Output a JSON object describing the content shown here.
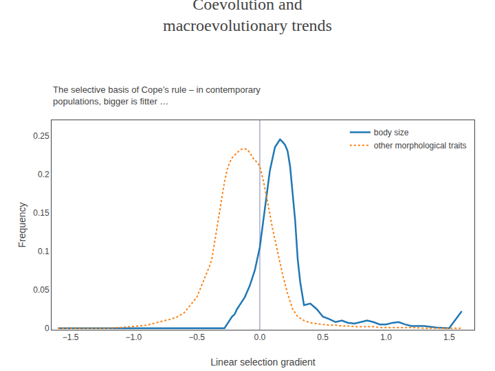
{
  "chart_data": {
    "type": "line",
    "title": "Coevolution and\nmacroevolutionary trends",
    "subtitle": "The selective basis of Cope’s rule – in contemporary\npopulations, bigger is fitter …",
    "x_label": "Linear selection gradient",
    "y_label": "Frequency",
    "xlim": [
      -1.65,
      1.7
    ],
    "ylim": [
      -0.002,
      0.27
    ],
    "xticks": [
      {
        "value": -1.5,
        "label": "−1.5"
      },
      {
        "value": -1.0,
        "label": "−1.0"
      },
      {
        "value": -0.5,
        "label": "−0.5"
      },
      {
        "value": 0.0,
        "label": "0.0"
      },
      {
        "value": 0.5,
        "label": "0.5"
      },
      {
        "value": 1.0,
        "label": "1.0"
      },
      {
        "value": 1.5,
        "label": "1.5"
      }
    ],
    "yticks": [
      0,
      0.05,
      0.1,
      0.15,
      0.2,
      0.25
    ],
    "grid": false,
    "legend": "upper right",
    "vline": {
      "x": 0.0,
      "color": "#aaaacc"
    },
    "series": [
      {
        "name": "body size",
        "line_style": "solid",
        "x": [
          -1.6,
          -1.2,
          -0.8,
          -0.6,
          -0.5,
          -0.45,
          -0.42,
          -0.38,
          -0.36,
          -0.32,
          -0.3,
          -0.28,
          -0.26,
          -0.24,
          -0.22,
          -0.2,
          -0.18,
          -0.16,
          -0.12,
          -0.08,
          -0.04,
          0.0,
          0.04,
          0.08,
          0.12,
          0.16,
          0.18,
          0.2,
          0.22,
          0.24,
          0.26,
          0.28,
          0.3,
          0.32,
          0.35,
          0.4,
          0.45,
          0.5,
          0.55,
          0.6,
          0.65,
          0.7,
          0.75,
          0.8,
          0.85,
          0.9,
          0.95,
          1.0,
          1.05,
          1.1,
          1.15,
          1.2,
          1.3,
          1.4,
          1.5,
          1.6
        ],
        "values": [
          0.0,
          0.0,
          0.0,
          0.0,
          0.0,
          0.0,
          0.0,
          0.0,
          0.0,
          0.0,
          0.0,
          0.0,
          0.005,
          0.01,
          0.015,
          0.018,
          0.025,
          0.03,
          0.04,
          0.055,
          0.075,
          0.105,
          0.155,
          0.205,
          0.235,
          0.245,
          0.242,
          0.238,
          0.23,
          0.21,
          0.175,
          0.14,
          0.09,
          0.06,
          0.03,
          0.032,
          0.025,
          0.015,
          0.012,
          0.008,
          0.01,
          0.007,
          0.006,
          0.008,
          0.01,
          0.008,
          0.005,
          0.005,
          0.007,
          0.008,
          0.005,
          0.003,
          0.003,
          0.001,
          0.0,
          0.022
        ]
      },
      {
        "name": "other morphological traits",
        "line_style": "dotted",
        "x": [
          -1.6,
          -1.5,
          -1.4,
          -1.3,
          -1.2,
          -1.1,
          -1.0,
          -0.95,
          -0.9,
          -0.85,
          -0.8,
          -0.75,
          -0.7,
          -0.65,
          -0.6,
          -0.55,
          -0.5,
          -0.45,
          -0.4,
          -0.38,
          -0.36,
          -0.34,
          -0.32,
          -0.3,
          -0.28,
          -0.26,
          -0.24,
          -0.22,
          -0.2,
          -0.18,
          -0.15,
          -0.12,
          -0.1,
          -0.08,
          -0.05,
          -0.02,
          0.0,
          0.03,
          0.06,
          0.1,
          0.14,
          0.18,
          0.22,
          0.26,
          0.3,
          0.35,
          0.4,
          0.45,
          0.5,
          0.55,
          0.6,
          0.65,
          0.7,
          0.75,
          0.8,
          0.85,
          0.9,
          0.95,
          1.0,
          1.1,
          1.2,
          1.3,
          1.4,
          1.5,
          1.6
        ],
        "values": [
          0.0,
          0.0,
          0.0,
          0.0,
          0.0,
          0.001,
          0.002,
          0.003,
          0.004,
          0.006,
          0.008,
          0.01,
          0.012,
          0.015,
          0.02,
          0.03,
          0.04,
          0.06,
          0.08,
          0.09,
          0.11,
          0.13,
          0.15,
          0.17,
          0.19,
          0.205,
          0.215,
          0.221,
          0.225,
          0.228,
          0.232,
          0.233,
          0.232,
          0.228,
          0.22,
          0.215,
          0.21,
          0.19,
          0.165,
          0.13,
          0.1,
          0.07,
          0.045,
          0.025,
          0.015,
          0.01,
          0.007,
          0.006,
          0.005,
          0.004,
          0.004,
          0.003,
          0.003,
          0.002,
          0.002,
          0.002,
          0.002,
          0.001,
          0.001,
          0.001,
          0.001,
          0.0,
          0.0,
          0.0,
          0.0
        ]
      }
    ]
  }
}
